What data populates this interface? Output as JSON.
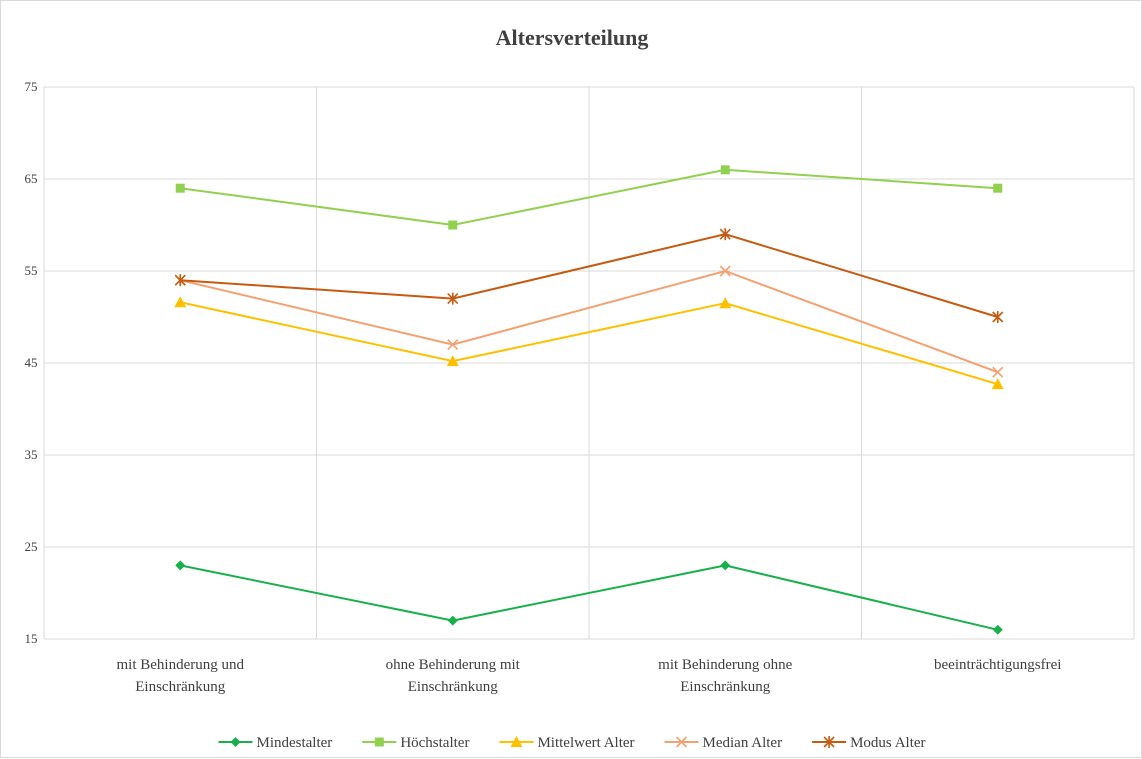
{
  "chart_data": {
    "type": "line",
    "title": "Altersverteilung",
    "categories": [
      [
        "mit Behinderung und",
        "Einschränkung"
      ],
      [
        "ohne Behinderung mit",
        "Einschränkung"
      ],
      [
        "mit Behinderung ohne",
        "Einschränkung"
      ],
      [
        "beeinträchtigungsfrei"
      ]
    ],
    "ylim": [
      15,
      75
    ],
    "yticks": [
      15,
      25,
      35,
      45,
      55,
      65,
      75
    ],
    "grid": true,
    "legend_position": "bottom",
    "series": [
      {
        "name": "Mindestalter",
        "values": [
          23,
          17,
          23,
          16
        ],
        "color": "#19b04b",
        "marker": "diamond"
      },
      {
        "name": "Höchstalter",
        "values": [
          64,
          60,
          66,
          64
        ],
        "color": "#92d050",
        "marker": "square"
      },
      {
        "name": "Mittelwert Alter",
        "values": [
          51.6,
          45.2,
          51.5,
          42.7
        ],
        "color": "#ffc000",
        "marker": "triangle"
      },
      {
        "name": "Median Alter",
        "values": [
          54,
          47,
          55,
          44
        ],
        "color": "#f4a070",
        "marker": "x"
      },
      {
        "name": "Modus Alter",
        "values": [
          54,
          52,
          59,
          50
        ],
        "color": "#c55a11",
        "marker": "star"
      }
    ]
  }
}
